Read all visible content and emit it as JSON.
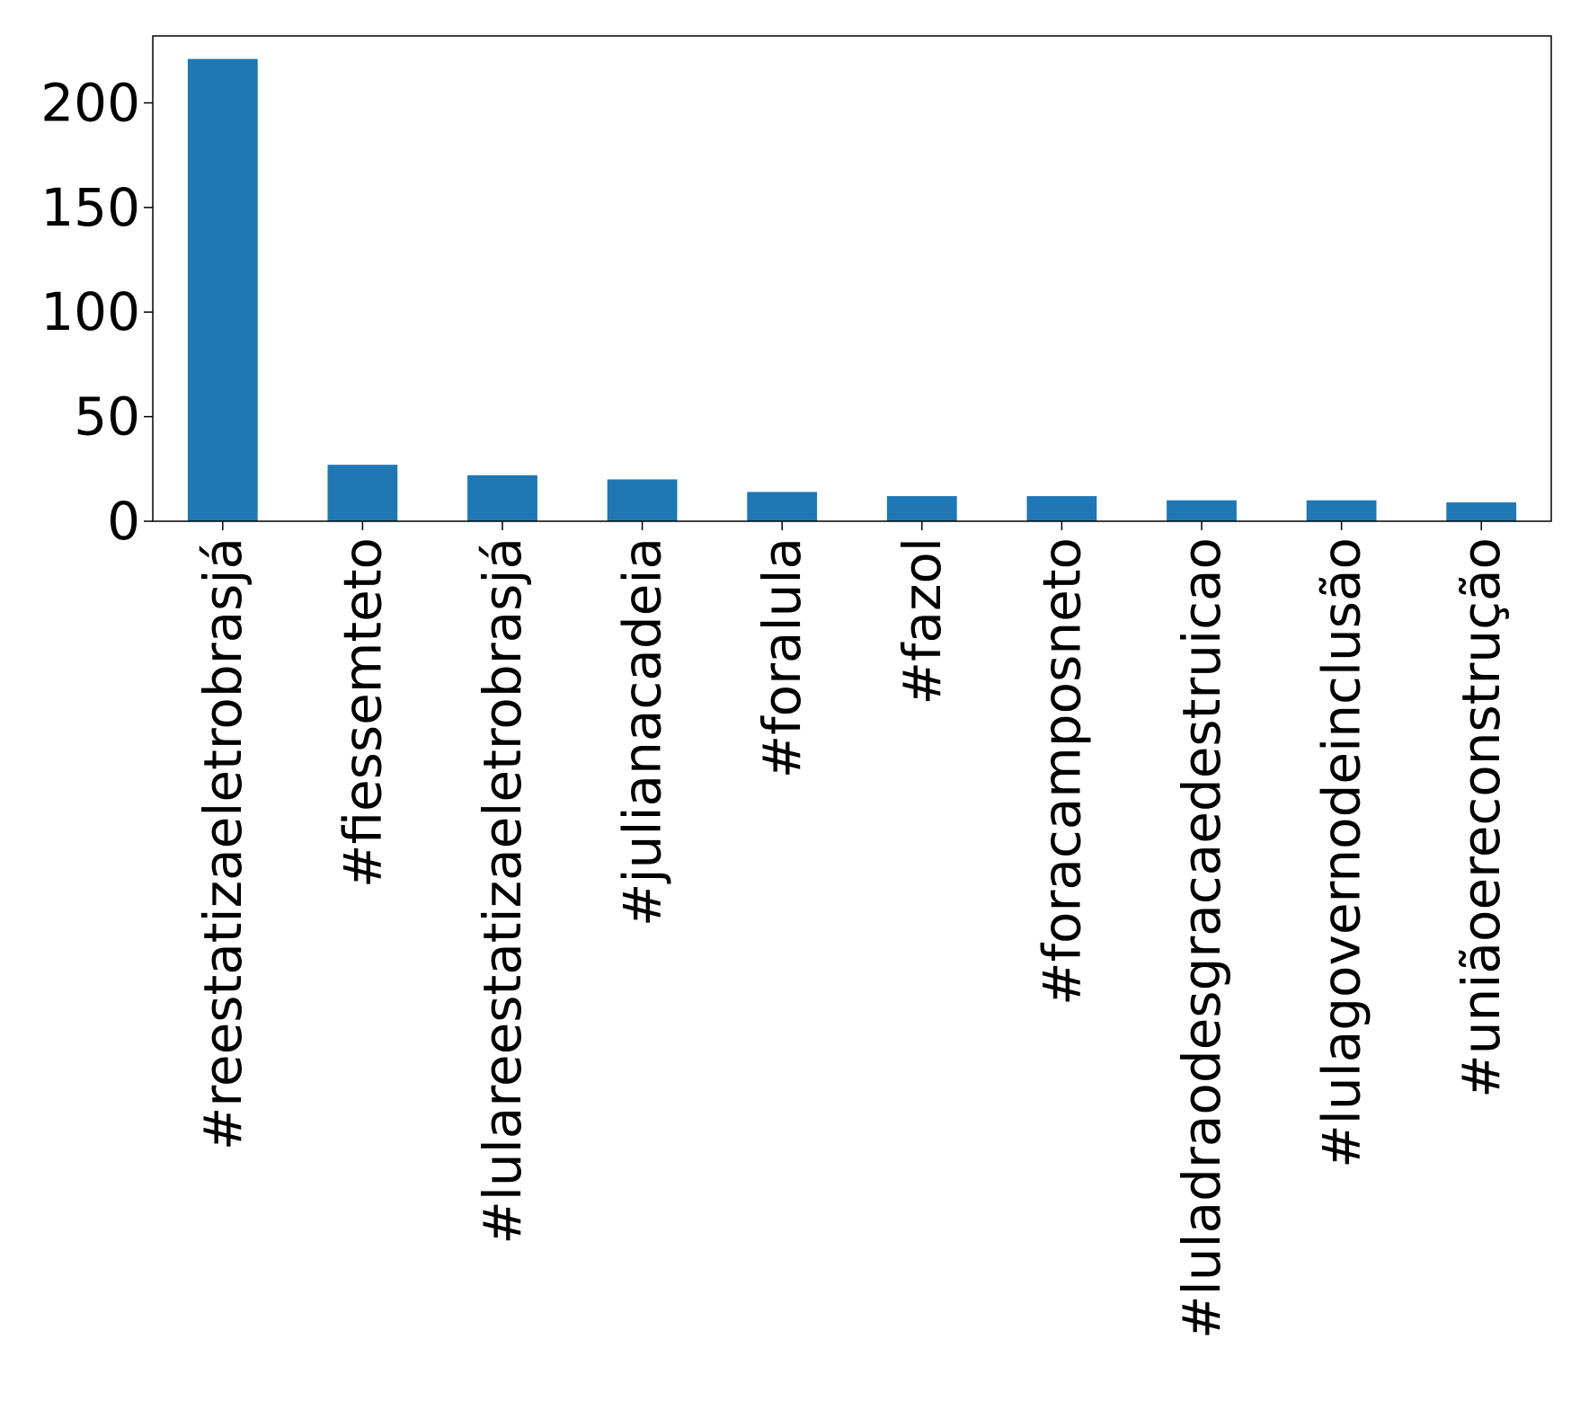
{
  "chart_data": {
    "type": "bar",
    "categories": [
      "#reestatizaeletrobrasjá",
      "#fiessemteto",
      "#lulareestatizaeletrobrasjá",
      "#julianacadeia",
      "#foralula",
      "#fazol",
      "#foracamposneto",
      "#luladraodesgracaedestruicao",
      "#lulagovernodeinclusão",
      "#uniãoereconstrução"
    ],
    "values": [
      221,
      27,
      22,
      20,
      14,
      12,
      12,
      10,
      10,
      9
    ],
    "ylim": [
      0,
      232
    ],
    "yticks": [
      0,
      50,
      100,
      150,
      200
    ],
    "grid": false,
    "bar_color": "#1f77b4"
  }
}
